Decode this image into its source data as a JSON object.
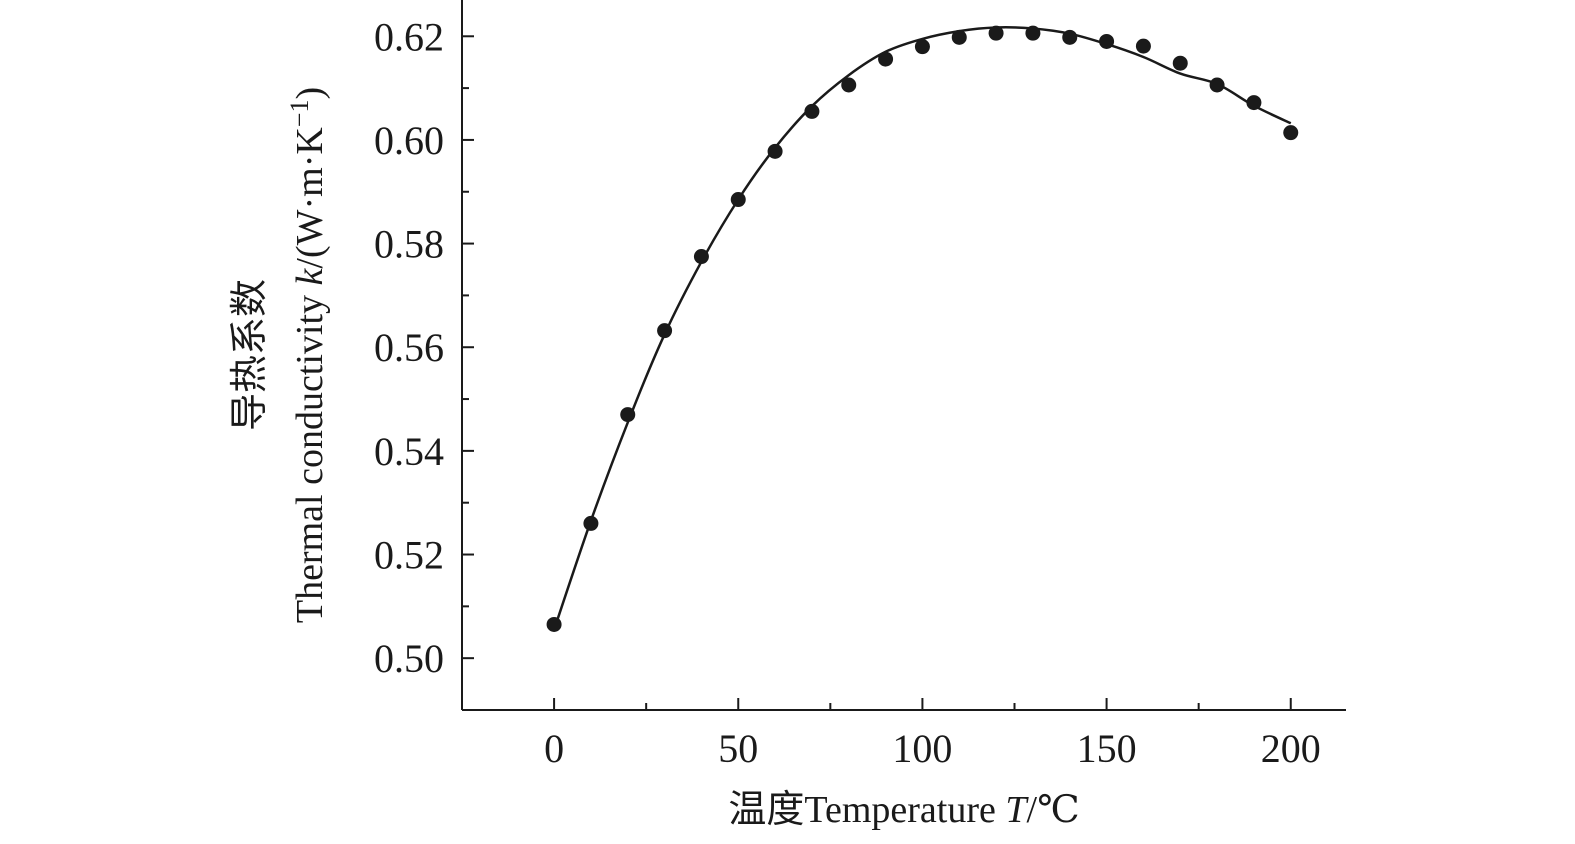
{
  "chart_data": {
    "type": "scatter",
    "xlabel_cn": "温度",
    "xlabel_en": "Temperature ",
    "xlabel_var": "T",
    "xlabel_unit": "/℃",
    "ylabel_cn": "导热系数",
    "ylabel_en": "Thermal conductivity ",
    "ylabel_var": "k",
    "ylabel_unit": "/(W·m·K",
    "ylabel_unit_exp": "−1",
    "ylabel_unit_close": ")",
    "xlim": [
      -25,
      215
    ],
    "ylim": [
      0.49,
      0.627
    ],
    "x_ticks": [
      0,
      50,
      100,
      150,
      200
    ],
    "x_tick_labels": [
      "0",
      "50",
      "100",
      "150",
      "200"
    ],
    "x_minor_ticks": [
      25,
      75,
      125,
      175
    ],
    "y_ticks": [
      0.5,
      0.52,
      0.54,
      0.56,
      0.58,
      0.6,
      0.62
    ],
    "y_tick_labels": [
      "0.50",
      "0.52",
      "0.54",
      "0.56",
      "0.58",
      "0.60",
      "0.62"
    ],
    "y_minor_ticks": [
      0.51,
      0.53,
      0.55,
      0.57,
      0.59,
      0.61
    ],
    "grid": false,
    "series": [
      {
        "type": "scatter",
        "x": [
          0,
          10,
          20,
          30,
          40,
          50,
          60,
          70,
          80,
          90,
          100,
          110,
          120,
          130,
          140,
          150,
          160,
          170,
          180,
          190,
          200
        ],
        "y": [
          0.5065,
          0.526,
          0.547,
          0.5632,
          0.5775,
          0.5885,
          0.5978,
          0.6055,
          0.6106,
          0.6156,
          0.618,
          0.6198,
          0.6206,
          0.6206,
          0.6198,
          0.619,
          0.6181,
          0.6148,
          0.6106,
          0.6072,
          0.6014
        ]
      },
      {
        "type": "line",
        "x": [
          0,
          10,
          20,
          30,
          40,
          50,
          60,
          70,
          80,
          90,
          100,
          110,
          120,
          130,
          140,
          150,
          160,
          170,
          180,
          190,
          200
        ],
        "y": [
          0.5055,
          0.5265,
          0.5455,
          0.5625,
          0.5765,
          0.5885,
          0.5985,
          0.6065,
          0.6125,
          0.617,
          0.6195,
          0.621,
          0.6217,
          0.6215,
          0.6205,
          0.6185,
          0.616,
          0.6128,
          0.6108,
          0.6066,
          0.6032
        ]
      }
    ],
    "colors": {
      "ink": "#1a1a1a"
    }
  }
}
